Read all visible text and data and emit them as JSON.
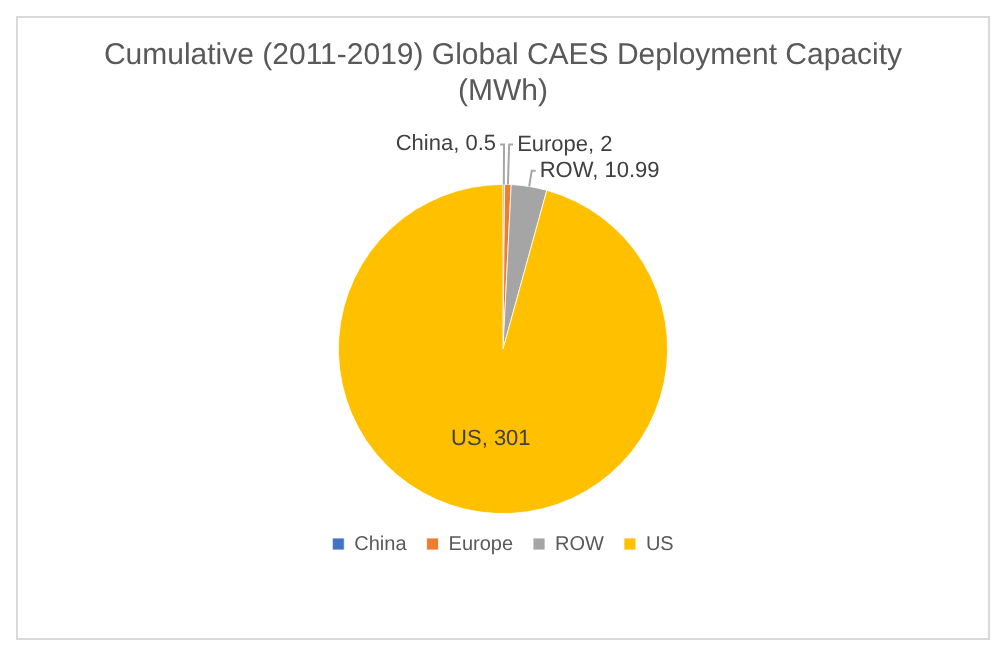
{
  "chart_data": {
    "type": "pie",
    "title": "Cumulative (2011-2019) Global CAES Deployment Capacity (MWh)",
    "categories": [
      "China",
      "Europe",
      "ROW",
      "US"
    ],
    "values": [
      0.5,
      2,
      10.99,
      301
    ],
    "value_labels": [
      "China, 0.5",
      "Europe, 2",
      "ROW, 10.99",
      "US, 301"
    ],
    "colors": [
      "#4472c4",
      "#ed7d31",
      "#a5a5a5",
      "#ffc000"
    ],
    "legend": "bottom"
  }
}
